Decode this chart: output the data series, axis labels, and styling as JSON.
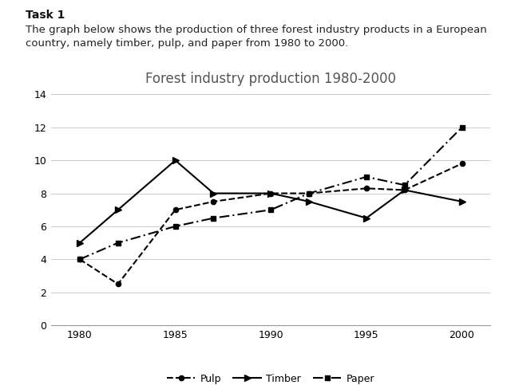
{
  "title": "Forest industry production 1980-2000",
  "task_label": "Task 1",
  "desc_line1": "The graph below shows the production of three forest industry products in a European",
  "desc_line2": "country, namely timber, pulp, and paper from 1980 to 2000.",
  "years": [
    1980,
    1982,
    1985,
    1987,
    1990,
    1992,
    1995,
    1997,
    2000
  ],
  "timber": [
    5.0,
    7.0,
    10.0,
    8.0,
    8.0,
    7.5,
    6.5,
    8.2,
    7.5
  ],
  "pulp": [
    4.0,
    2.5,
    7.0,
    7.5,
    8.0,
    8.0,
    8.3,
    8.2,
    9.8
  ],
  "paper": [
    4.0,
    5.0,
    6.0,
    6.5,
    7.0,
    8.0,
    9.0,
    8.5,
    12.0
  ],
  "ylim": [
    0,
    14
  ],
  "yticks": [
    0,
    2,
    4,
    6,
    8,
    10,
    12,
    14
  ],
  "xticks": [
    1980,
    1985,
    1990,
    1995,
    2000
  ],
  "bg_color": "#ffffff",
  "line_color": "#000000",
  "grid_color": "#cccccc",
  "title_fontsize": 12,
  "label_fontsize": 9,
  "text_fontsize": 9.5
}
